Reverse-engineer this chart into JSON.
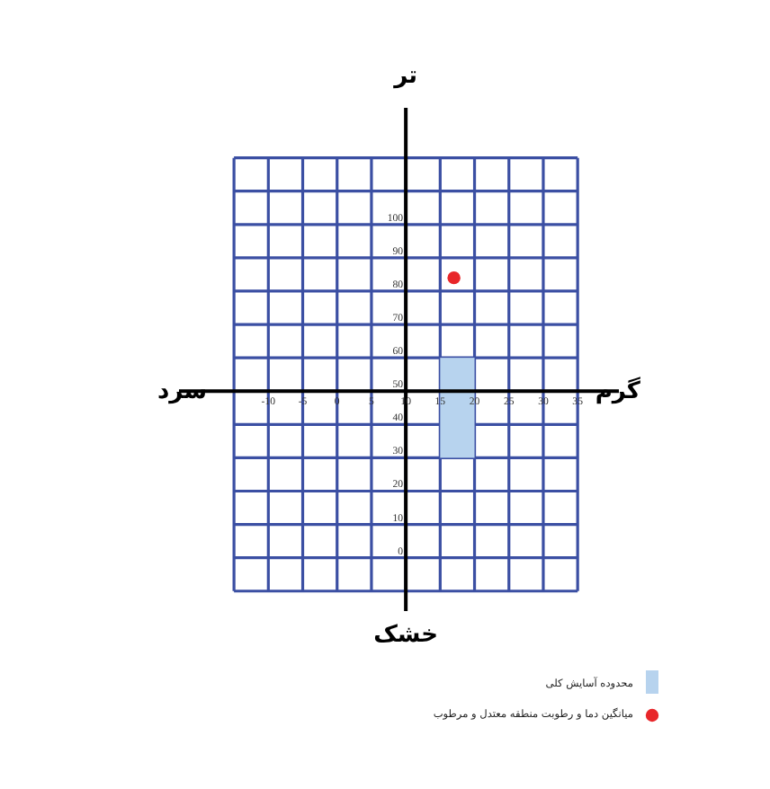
{
  "chart_data": {
    "type": "scatter",
    "annotations": [
      "تر",
      "خشک",
      "سرد",
      "گرم"
    ],
    "xlim": [
      -23,
      41
    ],
    "ylim": [
      -16,
      135
    ],
    "xticks": [
      {
        "value": -15,
        "label": null
      },
      -10,
      -5,
      0,
      5,
      10,
      15,
      20,
      25,
      30,
      35
    ],
    "yticks": [
      {
        "value": -10,
        "label": null
      },
      0,
      10,
      20,
      30,
      40,
      50,
      60,
      70,
      80,
      90,
      100,
      {
        "value": 110,
        "label": null
      },
      {
        "value": 120,
        "label": null
      }
    ],
    "grid": true,
    "legend": "bottom right",
    "marker": "circle",
    "series": [
      {
        "name": "محدوده آسایش کلی",
        "type": "bar",
        "color": "#b7d3ee",
        "x": [
          17.5
        ],
        "base": [
          30
        ],
        "values": [
          30
        ]
      },
      {
        "name": "میانگین دما و رطوبت منطقه معتدل و مرطوب",
        "color": "#e8262a",
        "x": [
          17
        ],
        "values": [
          84
        ]
      }
    ]
  }
}
